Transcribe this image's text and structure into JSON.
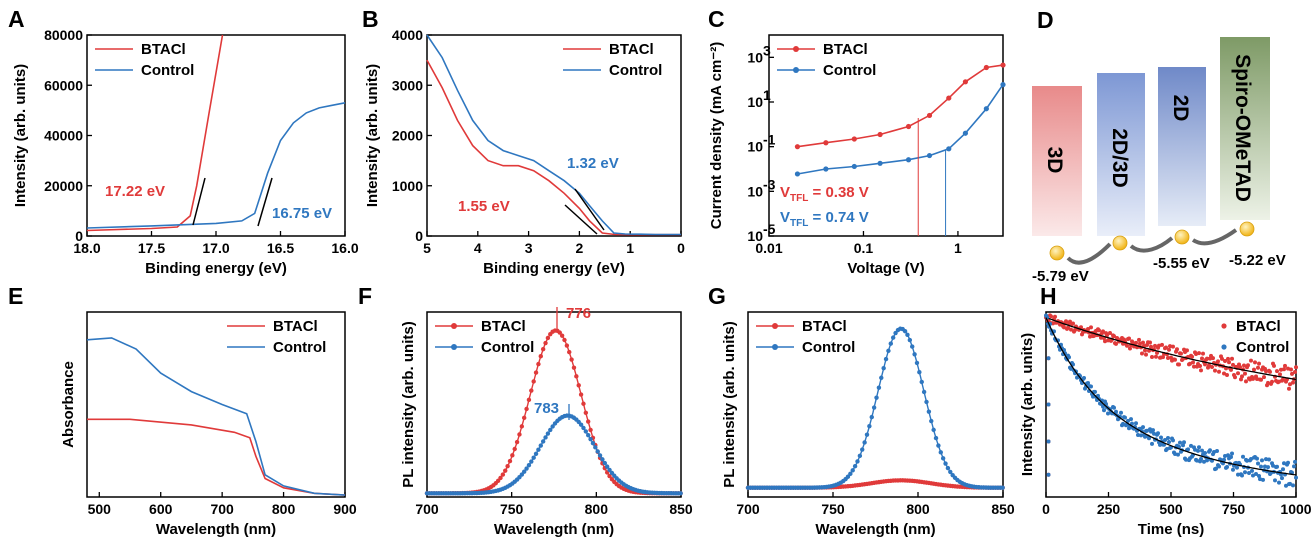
{
  "colors": {
    "red": "#e03a3a",
    "blue": "#2f77c0",
    "axis": "#000000"
  },
  "chart_data": [
    {
      "panel": "A",
      "type": "line",
      "xlabel": "Binding energy (eV)",
      "ylabel": "Intensity (arb. units)",
      "xlim": [
        18.0,
        16.0
      ],
      "ylim": [
        0,
        80000
      ],
      "x_reversed": true,
      "xticks": [
        "18.0",
        "17.5",
        "17.0",
        "16.5",
        "16.0"
      ],
      "yticks": [
        "0",
        "20000",
        "40000",
        "60000",
        "80000"
      ],
      "legend": [
        "BTACl",
        "Control"
      ],
      "legend_position": "top-left",
      "annotations": [
        "17.22 eV",
        "16.75 eV"
      ],
      "series": [
        {
          "name": "BTACl",
          "color": "red",
          "x": [
            18.0,
            17.5,
            17.3,
            17.2,
            17.15,
            17.1,
            17.05,
            17.0,
            16.95
          ],
          "y": [
            2200,
            3000,
            3600,
            8000,
            20000,
            35000,
            50000,
            65000,
            80000
          ]
        },
        {
          "name": "Control",
          "color": "blue",
          "x": [
            18.0,
            17.5,
            17.0,
            16.8,
            16.7,
            16.6,
            16.5,
            16.4,
            16.3,
            16.2,
            16.1,
            16.0
          ],
          "y": [
            3200,
            4000,
            5000,
            6000,
            9000,
            25000,
            38000,
            45000,
            49000,
            51000,
            52000,
            53000
          ]
        }
      ]
    },
    {
      "panel": "B",
      "type": "line",
      "xlabel": "Binding energy (eV)",
      "ylabel": "Intensity (arb. units)",
      "xlim": [
        5,
        0
      ],
      "ylim": [
        0,
        4000
      ],
      "x_reversed": true,
      "xticks": [
        "5",
        "4",
        "3",
        "2",
        "1",
        "0"
      ],
      "yticks": [
        "0",
        "1000",
        "2000",
        "3000",
        "4000"
      ],
      "legend": [
        "BTACl",
        "Control"
      ],
      "legend_position": "top-right",
      "annotations": [
        "1.55 eV",
        "1.32 eV"
      ],
      "series": [
        {
          "name": "BTACl",
          "color": "red",
          "x": [
            5.0,
            4.7,
            4.4,
            4.1,
            3.8,
            3.5,
            3.2,
            2.9,
            2.6,
            2.3,
            2.0,
            1.8,
            1.55,
            1.3,
            1.0,
            0.5,
            0
          ],
          "y": [
            3500,
            2950,
            2300,
            1800,
            1500,
            1400,
            1400,
            1300,
            1100,
            850,
            550,
            300,
            60,
            30,
            25,
            25,
            25
          ]
        },
        {
          "name": "Control",
          "color": "blue",
          "x": [
            5.0,
            4.7,
            4.4,
            4.1,
            3.8,
            3.5,
            3.2,
            2.9,
            2.6,
            2.3,
            2.0,
            1.8,
            1.55,
            1.32,
            1.1,
            0.8,
            0.5,
            0
          ],
          "y": [
            4000,
            3550,
            2900,
            2300,
            1900,
            1700,
            1600,
            1500,
            1300,
            1100,
            850,
            600,
            300,
            60,
            40,
            35,
            30,
            30
          ]
        }
      ]
    },
    {
      "panel": "C",
      "type": "line",
      "log_x": true,
      "log_y": true,
      "xlabel": "Voltage (V)",
      "ylabel": "Current density (mA cm⁻²)",
      "xlim": [
        0.01,
        3
      ],
      "ylim_exp": [
        -5,
        4
      ],
      "xticks": [
        "0.01",
        "0.1",
        "1"
      ],
      "yticks_exp": [
        "-5",
        "-3",
        "-1",
        "1",
        "3"
      ],
      "legend": [
        "BTACl",
        "Control"
      ],
      "legend_position": "top-left",
      "annotations": {
        "btacl_vtfl": "= 0.38 V",
        "control_vtfl": "= 0.74 V",
        "vtfl_label": "V",
        "vtfl_sub": "TFL"
      },
      "vtfl_values": [
        0.38,
        0.74
      ],
      "series": [
        {
          "name": "BTACl",
          "color": "red",
          "x": [
            0.02,
            0.04,
            0.08,
            0.15,
            0.3,
            0.5,
            0.8,
            1.2,
            2.0,
            3.0
          ],
          "y": [
            0.1,
            0.15,
            0.22,
            0.35,
            0.8,
            2.5,
            15,
            80,
            350,
            450
          ]
        },
        {
          "name": "Control",
          "color": "blue",
          "x": [
            0.02,
            0.04,
            0.08,
            0.15,
            0.3,
            0.5,
            0.8,
            1.2,
            2.0,
            3.0
          ],
          "y": [
            0.006,
            0.01,
            0.013,
            0.018,
            0.026,
            0.04,
            0.08,
            0.4,
            5,
            60
          ]
        }
      ]
    },
    {
      "panel": "D",
      "type": "diagram",
      "layers": [
        "3D",
        "2D/3D",
        "2D",
        "Spiro-OMeTAD"
      ],
      "energy_labels": [
        "-5.79 eV",
        "-5.55 eV",
        "-5.22 eV"
      ]
    },
    {
      "panel": "E",
      "type": "line",
      "xlabel": "Wavelength (nm)",
      "ylabel": "Absorbance",
      "xlim": [
        480,
        900
      ],
      "ylim": [
        0,
        1
      ],
      "xticks": [
        "500",
        "600",
        "700",
        "800",
        "900"
      ],
      "legend": [
        "BTACl",
        "Control"
      ],
      "legend_position": "top-right",
      "series": [
        {
          "name": "BTACl",
          "color": "red",
          "x": [
            480,
            550,
            650,
            720,
            745,
            755,
            770,
            800,
            850,
            900
          ],
          "y": [
            0.42,
            0.42,
            0.39,
            0.35,
            0.32,
            0.22,
            0.1,
            0.05,
            0.02,
            0.01
          ]
        },
        {
          "name": "Control",
          "color": "blue",
          "x": [
            480,
            520,
            560,
            600,
            650,
            700,
            740,
            755,
            770,
            800,
            850,
            900
          ],
          "y": [
            0.85,
            0.86,
            0.8,
            0.67,
            0.57,
            0.5,
            0.45,
            0.3,
            0.12,
            0.06,
            0.02,
            0.01
          ]
        }
      ]
    },
    {
      "panel": "F",
      "type": "line",
      "xlabel": "Wavelength (nm)",
      "ylabel": "PL intensity (arb. units)",
      "xlim": [
        700,
        850
      ],
      "ylim": [
        0,
        1
      ],
      "xticks": [
        "700",
        "750",
        "800",
        "850"
      ],
      "legend": [
        "BTACl",
        "Control"
      ],
      "legend_position": "top-left",
      "annotations": [
        "776",
        "783"
      ],
      "series": [
        {
          "name": "BTACl",
          "color": "red",
          "peak_nm": 776,
          "peak_height": 0.88,
          "width": 30,
          "baseline": 0.02
        },
        {
          "name": "Control",
          "color": "blue",
          "peak_nm": 783,
          "peak_height": 0.42,
          "width": 32,
          "baseline": 0.02
        }
      ]
    },
    {
      "panel": "G",
      "type": "line",
      "xlabel": "Wavelength (nm)",
      "ylabel": "PL intensity (arb. units)",
      "xlim": [
        700,
        850
      ],
      "ylim": [
        0,
        1
      ],
      "xticks": [
        "700",
        "750",
        "800",
        "850"
      ],
      "legend": [
        "BTACl",
        "Control"
      ],
      "legend_position": "top-left",
      "series": [
        {
          "name": "BTACl",
          "color": "red",
          "peak_nm": 790,
          "peak_height": 0.04,
          "width": 35,
          "baseline": 0.05
        },
        {
          "name": "Control",
          "color": "blue",
          "peak_nm": 790,
          "peak_height": 0.86,
          "width": 27,
          "baseline": 0.05
        }
      ]
    },
    {
      "panel": "H",
      "type": "scatter",
      "xlabel": "Time (ns)",
      "ylabel": "Intensity (arb. units)",
      "xlim": [
        0,
        1000
      ],
      "ylim": [
        0,
        1
      ],
      "xticks": [
        "0",
        "250",
        "500",
        "750",
        "1000"
      ],
      "legend": [
        "BTACl",
        "Control"
      ],
      "legend_position": "top-right",
      "series": [
        {
          "name": "BTACl",
          "color": "red",
          "tau1": 1000,
          "tau2": 6000,
          "a1": 0.4
        },
        {
          "name": "Control",
          "color": "blue",
          "tau1": 200,
          "tau2": 700,
          "a1": 0.5
        }
      ]
    }
  ]
}
